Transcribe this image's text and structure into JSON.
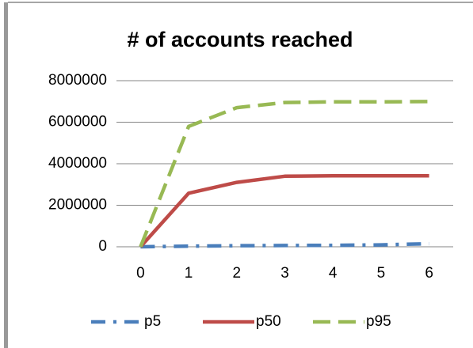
{
  "chart_data": {
    "type": "line",
    "title": "# of accounts reached",
    "categories": [
      "0",
      "1",
      "2",
      "3",
      "4",
      "5",
      "6"
    ],
    "series": [
      {
        "name": "p5",
        "color": "#4a7ebb",
        "dash": "dashdot",
        "values": [
          0,
          30000,
          50000,
          60000,
          70000,
          90000,
          150000
        ]
      },
      {
        "name": "p50",
        "color": "#be4b48",
        "dash": "solid",
        "values": [
          0,
          2580000,
          3100000,
          3400000,
          3420000,
          3420000,
          3420000
        ]
      },
      {
        "name": "p95",
        "color": "#98b954",
        "dash": "dashed",
        "values": [
          0,
          5800000,
          6700000,
          6950000,
          6980000,
          6980000,
          7000000
        ]
      }
    ],
    "ylim": [
      0,
      8000000
    ],
    "yticks": [
      0,
      2000000,
      4000000,
      6000000,
      8000000
    ],
    "grid": true,
    "legend": "bottom"
  }
}
